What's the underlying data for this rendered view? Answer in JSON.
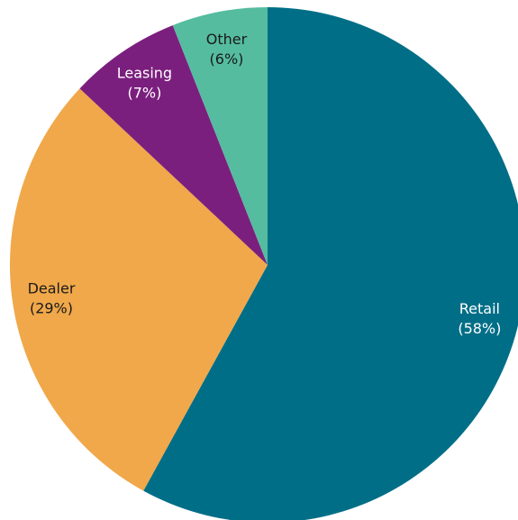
{
  "chart_data": {
    "type": "pie",
    "categories": [
      "Retail",
      "Dealer",
      "Leasing",
      "Other"
    ],
    "values": [
      58,
      29,
      7,
      6
    ],
    "value_labels": [
      "(58%)",
      "(29%)",
      "(7%)",
      "(6%)"
    ],
    "colors": [
      "#006e87",
      "#f0a84a",
      "#7b1f7e",
      "#55bc9f"
    ]
  }
}
